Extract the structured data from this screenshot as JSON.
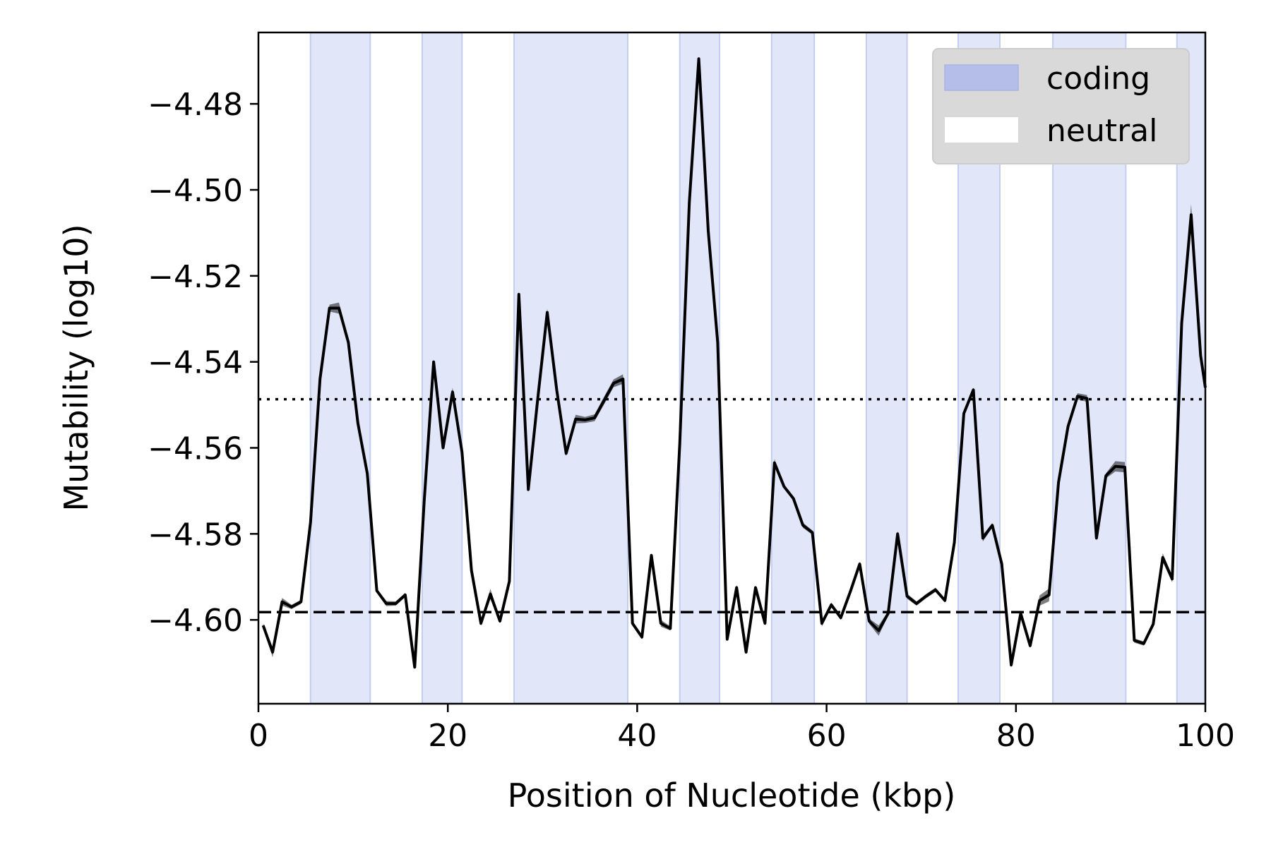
{
  "chart_data": {
    "type": "line",
    "xlabel": "Position of Nucleotide (kbp)",
    "ylabel": "Mutability (log10)",
    "xlim": [
      0,
      100
    ],
    "ylim": [
      -4.6195,
      -4.4634
    ],
    "x_ticks": [
      0,
      20,
      40,
      60,
      80,
      100
    ],
    "y_ticks": [
      -4.6,
      -4.58,
      -4.56,
      -4.54,
      -4.52,
      -4.5,
      -4.48
    ],
    "y_tick_labels": [
      "−4.60",
      "−4.58",
      "−4.56",
      "−4.54",
      "−4.52",
      "−4.50",
      "−4.48"
    ],
    "grid": false,
    "legend": {
      "placement": "top-right",
      "entries": [
        {
          "label": "coding",
          "color": "#b4bee8"
        },
        {
          "label": "neutral",
          "color": "#ffffff"
        }
      ]
    },
    "coding_regions": [
      [
        5.5,
        11.8
      ],
      [
        17.3,
        21.5
      ],
      [
        27.0,
        39.0
      ],
      [
        44.5,
        48.7
      ],
      [
        54.2,
        58.7
      ],
      [
        64.2,
        68.5
      ],
      [
        73.9,
        78.3
      ],
      [
        83.9,
        91.6
      ],
      [
        97.0,
        100
      ]
    ],
    "reference_lines": [
      {
        "style": "dotted",
        "y": -4.5487
      },
      {
        "style": "dashed",
        "y": -4.5982
      }
    ],
    "series": [
      {
        "x": [
          0.5,
          1.5,
          2.5,
          3.5,
          4.5,
          5.5,
          6.5,
          7.5,
          8.5,
          9.5,
          10.5,
          11.5,
          12.5,
          13.5,
          14.5,
          15.5,
          16.5,
          17.5,
          18.5,
          19.5,
          20.5,
          21.5,
          22.5,
          23.5,
          24.5,
          25.5,
          26.5,
          27.5,
          28.5,
          29.5,
          30.5,
          31.5,
          32.5,
          33.5,
          34.5,
          35.5,
          36.5,
          37.5,
          38.5,
          39.5,
          40.5,
          41.5,
          42.5,
          43.5,
          44.5,
          45.5,
          46.5,
          47.5,
          48.5,
          49.5,
          50.5,
          51.5,
          52.5,
          53.5,
          54.5,
          55.5,
          56.5,
          57.5,
          58.5,
          59.5,
          60.5,
          61.5,
          62.5,
          63.5,
          64.5,
          65.5,
          66.5,
          67.5,
          68.5,
          69.5,
          70.5,
          71.5,
          72.5,
          73.5,
          74.5,
          75.5,
          76.5,
          77.5,
          78.5,
          79.5,
          80.5,
          81.5,
          82.5,
          83.5,
          84.5,
          85.5,
          86.5,
          87.5,
          88.5,
          89.5,
          90.5,
          91.5,
          92.5,
          93.5,
          94.5,
          95.5,
          96.5,
          97.5,
          98.5,
          99.5,
          100.0
        ],
        "values": [
          -4.6013,
          -4.6075,
          -4.5958,
          -4.597,
          -4.5958,
          -4.5773,
          -4.544,
          -4.5275,
          -4.5275,
          -4.5355,
          -4.5542,
          -4.566,
          -4.5932,
          -4.5962,
          -4.5962,
          -4.5942,
          -4.611,
          -4.5725,
          -4.54,
          -4.56,
          -4.547,
          -4.561,
          -4.5885,
          -4.6008,
          -4.594,
          -4.6003,
          -4.591,
          -4.5243,
          -4.5697,
          -4.5485,
          -4.5285,
          -4.5465,
          -4.5613,
          -4.5533,
          -4.5535,
          -4.553,
          -4.549,
          -4.545,
          -4.544,
          -4.6008,
          -4.604,
          -4.585,
          -4.6008,
          -4.602,
          -4.559,
          -4.503,
          -4.4695,
          -4.5095,
          -4.5355,
          -4.6045,
          -4.5925,
          -4.6075,
          -4.5925,
          -4.6008,
          -4.5635,
          -4.569,
          -4.5718,
          -4.578,
          -4.5797,
          -4.6008,
          -4.5965,
          -4.5995,
          -4.5935,
          -4.587,
          -4.6003,
          -4.6025,
          -4.5985,
          -4.58,
          -4.5945,
          -4.5962,
          -4.5945,
          -4.593,
          -4.5955,
          -4.582,
          -4.552,
          -4.5465,
          -4.581,
          -4.578,
          -4.587,
          -4.6105,
          -4.5985,
          -4.606,
          -4.5955,
          -4.5942,
          -4.568,
          -4.555,
          -4.548,
          -4.5485,
          -4.581,
          -4.5665,
          -4.5643,
          -4.5645,
          -4.6048,
          -4.6055,
          -4.601,
          -4.5855,
          -4.5905,
          -4.531,
          -4.5058,
          -4.5385,
          -4.546
        ],
        "band_halfwidth": [
          0.0005,
          0.0012,
          0.0009,
          0.0005,
          0.0005,
          0.0005,
          0.0005,
          0.0008,
          0.0013,
          0.0008,
          0.0005,
          0.0005,
          0.0005,
          0.0006,
          0.0005,
          0.0005,
          0.0005,
          0.0005,
          0.0005,
          0.0005,
          0.001,
          0.0005,
          0.0005,
          0.0006,
          0.0012,
          0.0005,
          0.0005,
          0.0008,
          0.0006,
          0.0006,
          0.0009,
          0.0005,
          0.0006,
          0.001,
          0.0007,
          0.0008,
          0.0009,
          0.0009,
          0.0011,
          0.0005,
          0.0005,
          0.0005,
          0.0008,
          0.0005,
          0.0005,
          0.0005,
          0.0005,
          0.0005,
          0.0005,
          0.0005,
          0.0007,
          0.0005,
          0.0005,
          0.0005,
          0.0009,
          0.0005,
          0.0005,
          0.0006,
          0.0005,
          0.0008,
          0.0005,
          0.0005,
          0.0005,
          0.0005,
          0.0006,
          0.0012,
          0.0005,
          0.0007,
          0.0006,
          0.0005,
          0.0005,
          0.0005,
          0.0005,
          0.0005,
          0.0008,
          0.0005,
          0.0008,
          0.0005,
          0.0005,
          0.0005,
          0.0007,
          0.0005,
          0.0012,
          0.0015,
          0.0005,
          0.0005,
          0.0007,
          0.0008,
          0.0005,
          0.0006,
          0.0012,
          0.0012,
          0.0005,
          0.0005,
          0.0005,
          0.001,
          0.0008,
          0.0005,
          0.0025,
          0.0005,
          0.0005
        ]
      }
    ]
  }
}
